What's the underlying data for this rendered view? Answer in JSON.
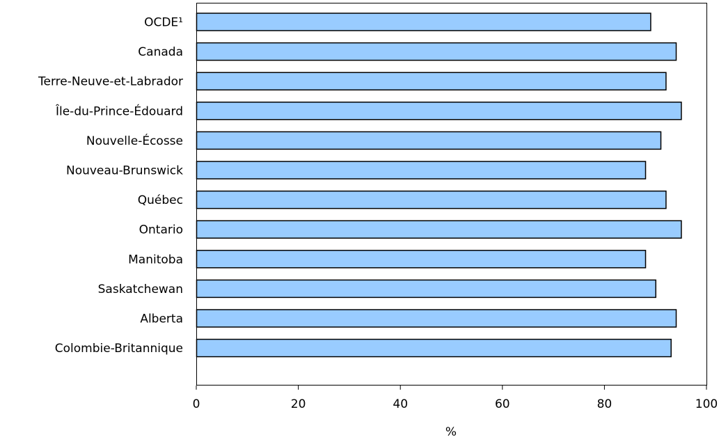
{
  "chart_data": {
    "type": "bar",
    "orientation": "horizontal",
    "categories": [
      "OCDE¹",
      "Canada",
      "Terre-Neuve-et-Labrador",
      "Île-du-Prince-Édouard",
      "Nouvelle-Écosse",
      "Nouveau-Brunswick",
      "Québec",
      "Ontario",
      "Manitoba",
      "Saskatchewan",
      "Alberta",
      "Colombie-Britannique"
    ],
    "values": [
      89,
      94,
      92,
      95,
      91,
      88,
      92,
      95,
      88,
      90,
      94,
      93
    ],
    "xlabel": "%",
    "xlim": [
      0,
      100
    ],
    "xticks": [
      0,
      20,
      40,
      60,
      80,
      100
    ],
    "grid": false,
    "bar_color": "#99ccff",
    "bar_edge_color": "#000000"
  }
}
